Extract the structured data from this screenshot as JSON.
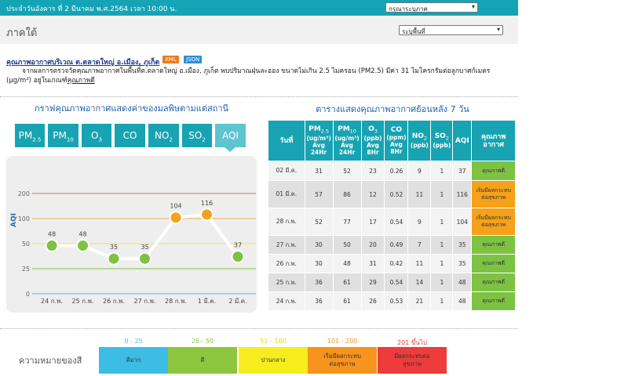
{
  "header": {
    "date_text": "ประจำวันอังคาร ที่ 2 มีนาคม พ.ศ.2564 เวลา 10:00 น.",
    "region_select": "กรุณาระบุภาค",
    "region_name": "ภาคใต้",
    "area_select": "ระบุพื้นที่"
  },
  "intro": {
    "title": "คุณภาพอากาศบริเวณ ต.ตลาดใหญ่ อ.เมือง, ภูเก็ต",
    "badge_xml": "XML",
    "badge_json": "JSON",
    "text_main": "จากผลการตรวจวัดคุณภาพอากาศในพื้นที่ต.ตลาดใหญ่ อ.เมือง, ภูเก็ต พบปริมาณฝุ่นละออง ขนาดไม่เกิน 2.5 ไมครอน (PM2.5) มีค่า 31 ไมโครกรัมต่อลูกบาศก์เมตร (μg/m³) อยู่ในเกณฑ์",
    "text_level": "คุณภาพดี"
  },
  "chart_panel": {
    "title": "กราฟคุณภาพอากาศแสดงค่าของมลพิษตามแต่สถานี",
    "tabs": [
      {
        "label": "PM",
        "sub": "2.5"
      },
      {
        "label": "PM",
        "sub": "10"
      },
      {
        "label": "O",
        "sub": "3"
      },
      {
        "label": "CO",
        "sub": ""
      },
      {
        "label": "NO",
        "sub": "2"
      },
      {
        "label": "SO",
        "sub": "2"
      },
      {
        "label": "AQI",
        "sub": ""
      }
    ],
    "active_tab": "AQI"
  },
  "chart_data": {
    "type": "line",
    "ylabel": "AQI",
    "categories": [
      "24 ก.พ.",
      "25 ก.พ.",
      "26 ก.พ.",
      "27 ก.พ.",
      "28 ก.พ.",
      "1 มี.ค.",
      "2 มี.ค."
    ],
    "values": [
      48,
      48,
      35,
      35,
      104,
      116,
      37
    ],
    "point_colors": [
      "#7dc242",
      "#7dc242",
      "#7dc242",
      "#7dc242",
      "#f5a11a",
      "#f5a11a",
      "#7dc242"
    ],
    "yticks": [
      0,
      25,
      50,
      100,
      200
    ],
    "threshold_lines": [
      {
        "value": 200,
        "color": "#e86a6a"
      },
      {
        "value": 100,
        "color": "#f3b24a"
      },
      {
        "value": 50,
        "color": "#f0e25a"
      },
      {
        "value": 25,
        "color": "#7dc242"
      },
      {
        "value": 0,
        "color": "#4fb3e6"
      }
    ],
    "ylim": [
      0,
      220
    ]
  },
  "table_panel": {
    "title": "ตารางแสดงคุณภาพอากาศย้อนหลัง 7 วัน",
    "headers": {
      "date": "วันที่",
      "pm25": "PM",
      "pm25_sub": "2.5",
      "pm25_unit": "(ug/m³)",
      "pm25_avg": "Avg",
      "pm25_hr": "24Hr",
      "pm10": "PM",
      "pm10_sub": "10",
      "pm10_unit": "(ug/m³)",
      "pm10_avg": "Avg",
      "pm10_hr": "24Hr",
      "o3": "O",
      "o3_sub": "3",
      "o3_unit": "(ppb)",
      "o3_avg": "Avg",
      "o3_hr": "8Hr",
      "co": "CO",
      "co_unit": "(ppm)",
      "co_avg": "Avg",
      "co_hr": "8Hr",
      "no2": "NO",
      "no2_sub": "2",
      "no2_unit": "(ppb)",
      "so2": "SO",
      "so2_sub": "2",
      "so2_unit": "(ppb)",
      "aqi": "AQI",
      "quality": "คุณภาพอากาศ"
    },
    "rows": [
      {
        "date": "02 มี.ค.",
        "pm25": "31",
        "pm10": "52",
        "o3": "23",
        "co": "0.26",
        "no2": "9",
        "so2": "1",
        "aqi": "37",
        "quality": "คุณภาพดี",
        "qcolor": "#7dc242"
      },
      {
        "date": "01 มี.ค.",
        "pm25": "57",
        "pm10": "86",
        "o3": "12",
        "co": "0.52",
        "no2": "11",
        "so2": "1",
        "aqi": "116",
        "quality": "เริ่มมีผลกระทบต่อสุขภาพ",
        "qcolor": "#f5a11a"
      },
      {
        "date": "28 ก.พ.",
        "pm25": "52",
        "pm10": "77",
        "o3": "17",
        "co": "0.54",
        "no2": "9",
        "so2": "1",
        "aqi": "104",
        "quality": "เริ่มมีผลกระทบต่อสุขภาพ",
        "qcolor": "#f5a11a"
      },
      {
        "date": "27 ก.พ.",
        "pm25": "30",
        "pm10": "50",
        "o3": "20",
        "co": "0.49",
        "no2": "7",
        "so2": "1",
        "aqi": "35",
        "quality": "คุณภาพดี",
        "qcolor": "#7dc242"
      },
      {
        "date": "26 ก.พ.",
        "pm25": "30",
        "pm10": "48",
        "o3": "31",
        "co": "0.42",
        "no2": "11",
        "so2": "1",
        "aqi": "35",
        "quality": "คุณภาพดี",
        "qcolor": "#7dc242"
      },
      {
        "date": "25 ก.พ.",
        "pm25": "36",
        "pm10": "61",
        "o3": "29",
        "co": "0.54",
        "no2": "14",
        "so2": "1",
        "aqi": "48",
        "quality": "คุณภาพดี",
        "qcolor": "#7dc242"
      },
      {
        "date": "24 ก.พ.",
        "pm25": "36",
        "pm10": "61",
        "o3": "26",
        "co": "0.53",
        "no2": "21",
        "so2": "1",
        "aqi": "48",
        "quality": "คุณภาพดี",
        "qcolor": "#7dc242"
      }
    ]
  },
  "legend": {
    "label": "ความหมายของสี",
    "items": [
      {
        "range": "0 - 25",
        "text": "ดีมาก",
        "color": "#3cbde6",
        "range_color": "#3cbde6"
      },
      {
        "range": "26 - 50",
        "text": "ดี",
        "color": "#8dc63f",
        "range_color": "#8dc63f"
      },
      {
        "range": "51 - 100",
        "text": "ปานกลาง",
        "color": "#f7ec1d",
        "range_color": "#e6d21a"
      },
      {
        "range": "101 - 200",
        "text": "เริ่มมีผลกระทบต่อสุขภาพ",
        "color": "#f7941d",
        "range_color": "#f7941d"
      },
      {
        "range": "201 ขึ้นไป",
        "text": "มีผลกระทบต่อสุขภาพ",
        "color": "#ee3b3b",
        "range_color": "#ee3b3b"
      }
    ]
  }
}
